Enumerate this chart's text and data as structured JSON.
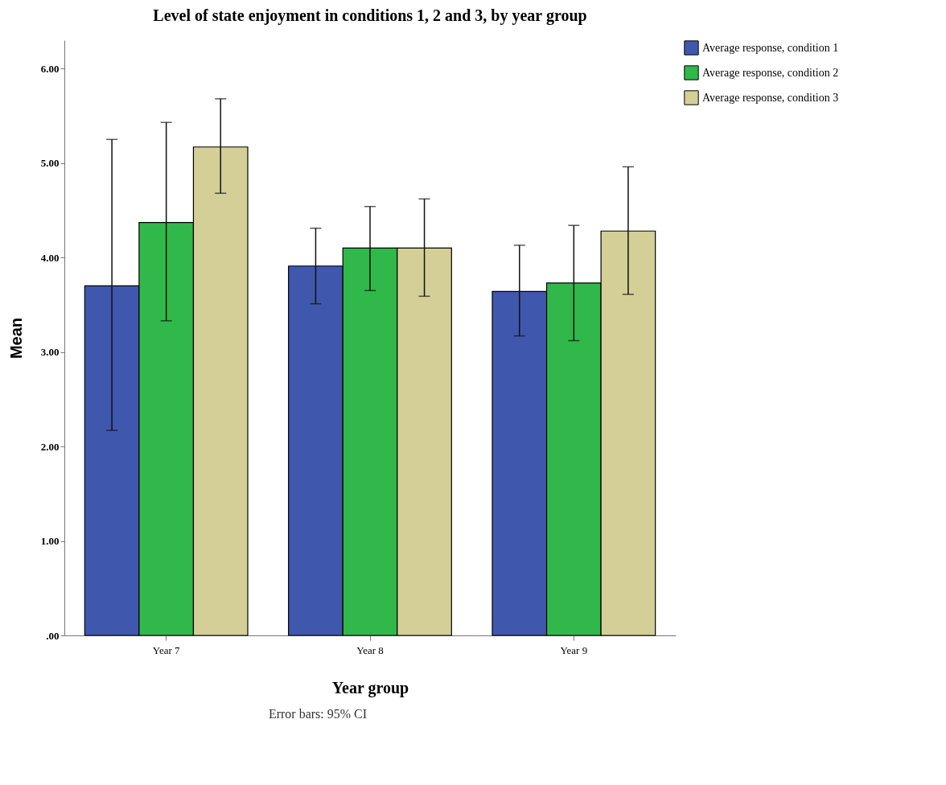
{
  "chart_data": {
    "type": "bar",
    "title": "Level of state enjoyment in conditions 1, 2 and 3, by year group",
    "xlabel": "Year group",
    "ylabel": "Mean",
    "annotations": [
      "Error bars: 95% CI"
    ],
    "categories": [
      "Year 7",
      "Year 8",
      "Year 9"
    ],
    "series": [
      {
        "name": "Average response, condition 1",
        "color": "#3f58ad",
        "values": [
          3.7,
          3.91,
          3.64
        ],
        "errors": [
          [
            2.17,
            5.25
          ],
          [
            3.51,
            4.31
          ],
          [
            3.17,
            4.13
          ]
        ]
      },
      {
        "name": "Average response, condition 2",
        "color": "#30b84a",
        "values": [
          4.37,
          4.1,
          3.73
        ],
        "errors": [
          [
            3.33,
            5.43
          ],
          [
            3.65,
            4.54
          ],
          [
            3.12,
            4.34
          ]
        ]
      },
      {
        "name": "Average response, condition 3",
        "color": "#d3cf97",
        "values": [
          5.17,
          4.1,
          4.28
        ],
        "errors": [
          [
            4.68,
            5.68
          ],
          [
            3.59,
            4.62
          ],
          [
            3.61,
            4.96
          ]
        ]
      }
    ],
    "ylim": [
      0,
      6.3
    ],
    "yticks": [
      {
        "value": 0,
        "label": ".00"
      },
      {
        "value": 1,
        "label": "1.00"
      },
      {
        "value": 2,
        "label": "2.00"
      },
      {
        "value": 3,
        "label": "3.00"
      },
      {
        "value": 4,
        "label": "4.00"
      },
      {
        "value": 5,
        "label": "5.00"
      },
      {
        "value": 6,
        "label": "6.00"
      }
    ],
    "grid": false,
    "legend": "top right"
  }
}
